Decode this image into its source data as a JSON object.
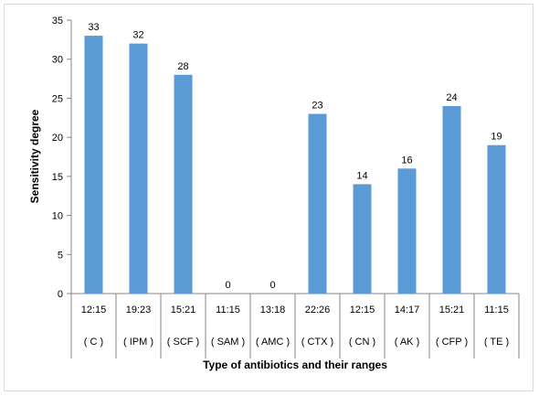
{
  "chart_data": {
    "type": "bar",
    "xlabel": "Type of antibiotics and their ranges",
    "ylabel": "Sensitivity degree",
    "ylim": [
      0,
      35
    ],
    "ytick_step": 5,
    "grid": false,
    "legend": "none",
    "bar_color": "#5b9bd5",
    "categories": [
      {
        "range": "12:15",
        "code": "( C )"
      },
      {
        "range": "19:23",
        "code": "( IPM )"
      },
      {
        "range": "15:21",
        "code": "( SCF )"
      },
      {
        "range": "11:15",
        "code": "( SAM )"
      },
      {
        "range": "13:18",
        "code": "( AMC )"
      },
      {
        "range": "22:26",
        "code": "( CTX )"
      },
      {
        "range": "12:15",
        "code": "( CN )"
      },
      {
        "range": "14:17",
        "code": "( AK )"
      },
      {
        "range": "15:21",
        "code": "( CFP )"
      },
      {
        "range": "11:15",
        "code": "( TE )"
      }
    ],
    "values": [
      33,
      32,
      28,
      0,
      0,
      23,
      14,
      16,
      24,
      19
    ]
  }
}
